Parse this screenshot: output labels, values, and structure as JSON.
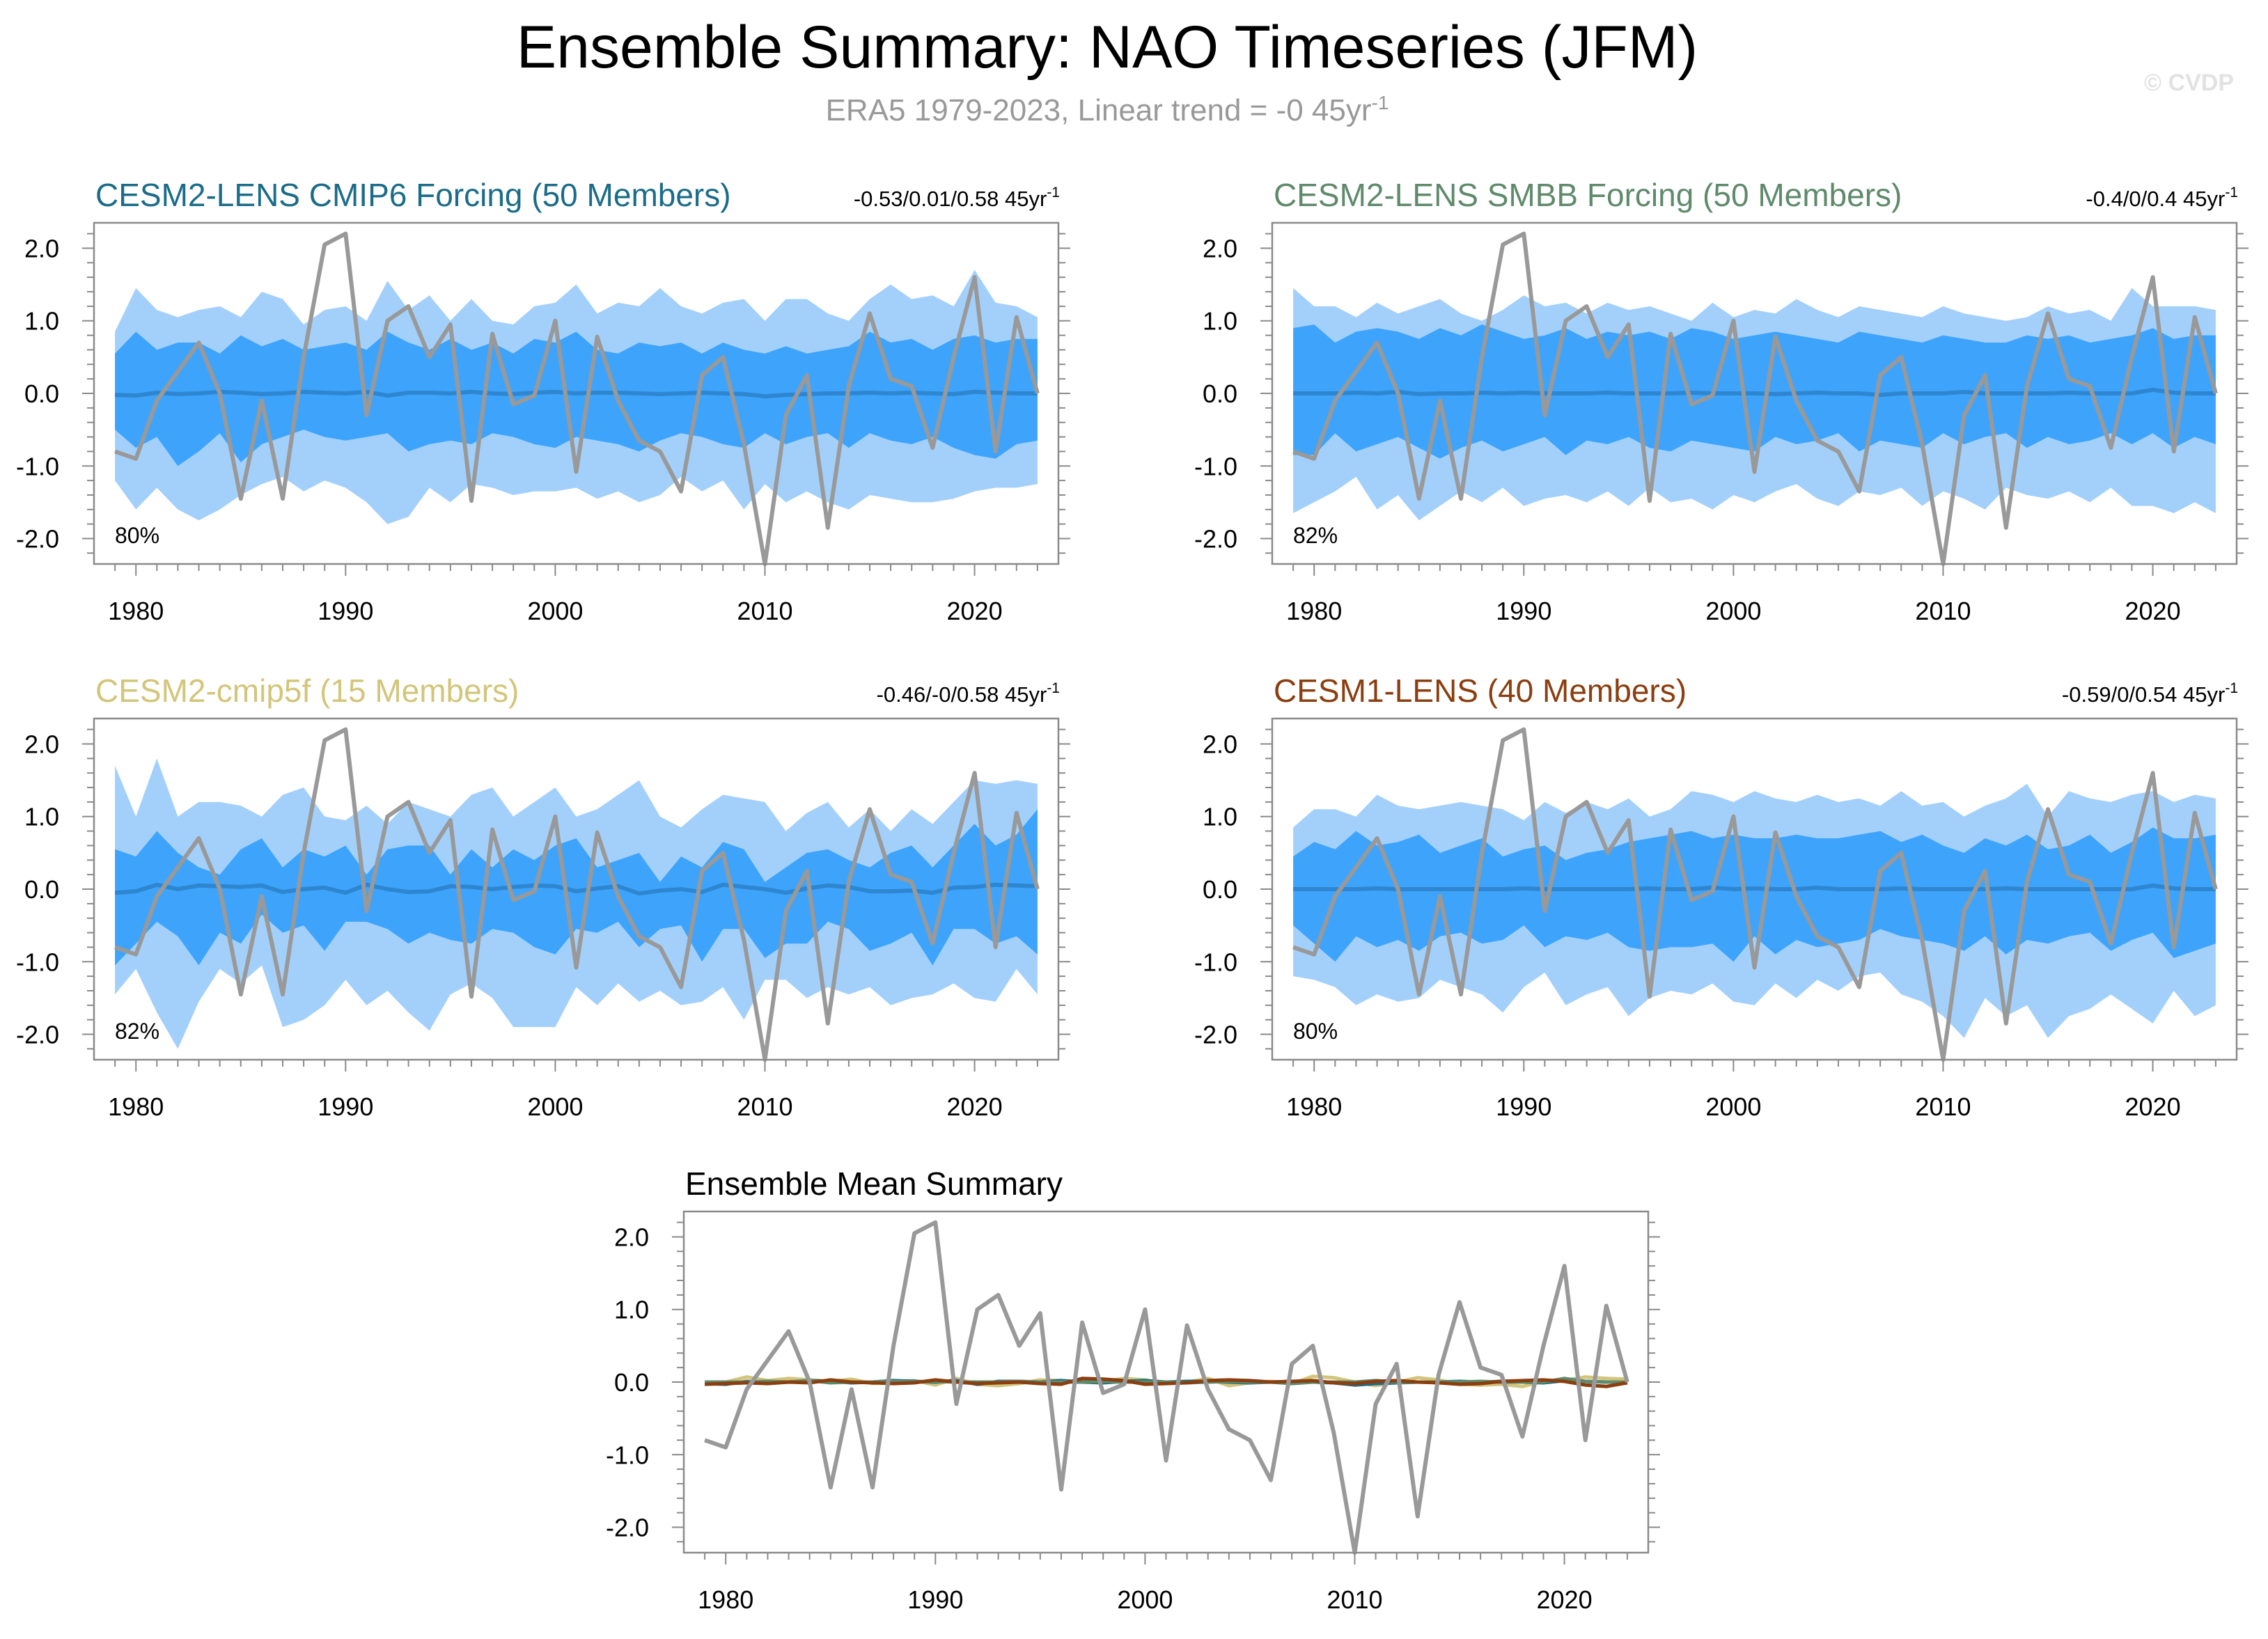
{
  "title": "Ensemble Summary: NAO Timeseries (JFM)",
  "subtitle": {
    "text": "ERA5 1979-2023, Linear trend = -0 45yr",
    "sup": "-1"
  },
  "watermark": "© CVDP",
  "colors": {
    "band_outer": "#a3d0fb",
    "band_inner": "#3ea4fb",
    "ens_mean": "#2e86d0",
    "obs": "#999999",
    "cesm2_cmip6": "#1b6c89",
    "cesm2_smbb": "#5f8a6c",
    "cesm2_cmip5f": "#d3c57a",
    "cesm1": "#8b3e0f"
  },
  "obs_years": [
    1979,
    1980,
    1981,
    1982,
    1983,
    1984,
    1985,
    1986,
    1987,
    1988,
    1989,
    1990,
    1991,
    1992,
    1993,
    1994,
    1995,
    1996,
    1997,
    1998,
    1999,
    2000,
    2001,
    2002,
    2003,
    2004,
    2005,
    2006,
    2007,
    2008,
    2009,
    2010,
    2011,
    2012,
    2013,
    2014,
    2015,
    2016,
    2017,
    2018,
    2019,
    2020,
    2021,
    2022,
    2023
  ],
  "obs_values": [
    -0.8,
    -0.9,
    -0.1,
    0.3,
    0.7,
    0.0,
    -1.45,
    -0.1,
    -1.45,
    0.5,
    2.05,
    2.2,
    -0.3,
    1.0,
    1.2,
    0.5,
    0.95,
    -1.48,
    0.82,
    -0.15,
    -0.03,
    1.0,
    -1.08,
    0.78,
    -0.1,
    -0.65,
    -0.8,
    -1.35,
    0.25,
    0.5,
    -0.7,
    -2.35,
    -0.3,
    0.25,
    -1.85,
    0.1,
    1.1,
    0.2,
    0.1,
    -0.75,
    0.5,
    1.6,
    -0.8,
    1.05,
    0.0
  ],
  "panels": [
    {
      "id": "cesm2-lens-cmip6",
      "title": "CESM2-LENS CMIP6 Forcing (50 Members)",
      "title_color": "#1b6c89",
      "stats": "-0.53/0.01/0.58 45yr",
      "stats_sup": "-1",
      "pct": "80%",
      "mean": [
        -0.02,
        -0.03,
        0.01,
        -0.01,
        0.0,
        0.02,
        0.01,
        -0.01,
        0.0,
        0.02,
        0.01,
        0.0,
        0.02,
        -0.03,
        0.01,
        0.01,
        0.0,
        0.02,
        0.0,
        -0.01,
        0.01,
        0.02,
        0.0,
        0.01,
        0.01,
        0.0,
        -0.01,
        0.0,
        0.01,
        0.0,
        -0.01,
        -0.04,
        -0.02,
        -0.01,
        0.0,
        0.0,
        0.01,
        0.0,
        0.01,
        0.0,
        -0.01,
        0.02,
        0.01,
        0.0,
        0.0
      ],
      "inner_upper": [
        0.55,
        0.85,
        0.6,
        0.7,
        0.7,
        0.55,
        0.8,
        0.65,
        0.75,
        0.6,
        0.65,
        0.7,
        0.6,
        0.85,
        0.7,
        0.6,
        0.75,
        0.6,
        0.7,
        0.55,
        0.75,
        0.7,
        0.85,
        0.6,
        0.55,
        0.7,
        0.65,
        0.7,
        0.55,
        0.7,
        0.6,
        0.55,
        0.65,
        0.55,
        0.6,
        0.65,
        0.85,
        0.7,
        0.75,
        0.6,
        0.75,
        0.8,
        0.7,
        0.75,
        0.75
      ],
      "inner_lower": [
        -0.5,
        -0.75,
        -0.6,
        -1.0,
        -0.8,
        -0.55,
        -0.95,
        -0.7,
        -0.6,
        -0.5,
        -0.6,
        -0.65,
        -0.6,
        -0.55,
        -0.8,
        -0.7,
        -0.65,
        -0.7,
        -0.55,
        -0.6,
        -0.7,
        -0.75,
        -0.6,
        -0.65,
        -0.7,
        -0.8,
        -0.65,
        -0.55,
        -0.6,
        -0.7,
        -0.75,
        -0.55,
        -0.7,
        -0.6,
        -0.55,
        -0.75,
        -0.55,
        -0.65,
        -0.7,
        -0.6,
        -0.75,
        -0.85,
        -0.9,
        -0.7,
        -0.65
      ],
      "outer_upper": [
        0.85,
        1.45,
        1.15,
        1.05,
        1.15,
        1.2,
        1.05,
        1.4,
        1.3,
        0.95,
        1.15,
        1.2,
        1.0,
        1.55,
        1.15,
        1.35,
        1.0,
        1.3,
        1.0,
        0.95,
        1.2,
        1.25,
        1.5,
        1.1,
        1.25,
        1.2,
        1.45,
        1.2,
        1.1,
        1.25,
        1.3,
        1.0,
        1.3,
        1.3,
        1.1,
        1.0,
        1.3,
        1.5,
        1.3,
        1.35,
        1.2,
        1.7,
        1.25,
        1.2,
        1.05
      ],
      "outer_lower": [
        -1.2,
        -1.6,
        -1.3,
        -1.6,
        -1.75,
        -1.6,
        -1.4,
        -1.25,
        -1.15,
        -1.35,
        -1.2,
        -1.3,
        -1.5,
        -1.8,
        -1.7,
        -1.3,
        -1.5,
        -1.25,
        -1.3,
        -1.4,
        -1.35,
        -1.35,
        -1.3,
        -1.45,
        -1.35,
        -1.5,
        -1.4,
        -1.15,
        -1.35,
        -1.2,
        -1.6,
        -1.25,
        -1.5,
        -1.35,
        -1.5,
        -1.6,
        -1.4,
        -1.45,
        -1.5,
        -1.5,
        -1.45,
        -1.35,
        -1.3,
        -1.3,
        -1.25
      ]
    },
    {
      "id": "cesm2-lens-smbb",
      "title": "CESM2-LENS SMBB Forcing (50 Members)",
      "title_color": "#5f8a6c",
      "stats": "-0.4/0/0.4 45yr",
      "stats_sup": "-1",
      "pct": "82%",
      "mean": [
        0.0,
        0.0,
        0.0,
        0.01,
        0.0,
        0.02,
        -0.01,
        0.0,
        0.0,
        0.01,
        0.0,
        0.01,
        0.0,
        0.0,
        0.0,
        0.01,
        0.0,
        0.0,
        0.0,
        0.01,
        0.0,
        0.0,
        0.0,
        -0.01,
        0.0,
        0.01,
        0.0,
        0.0,
        -0.02,
        0.0,
        0.0,
        0.0,
        0.02,
        0.0,
        0.0,
        0.0,
        0.0,
        0.01,
        0.0,
        0.0,
        0.0,
        0.05,
        0.01,
        0.0,
        0.0
      ],
      "inner_upper": [
        0.9,
        0.95,
        0.7,
        0.85,
        0.9,
        0.85,
        0.75,
        0.9,
        0.8,
        0.95,
        0.85,
        0.75,
        0.8,
        0.9,
        0.75,
        0.85,
        0.8,
        0.85,
        0.75,
        0.9,
        0.85,
        0.75,
        0.8,
        0.85,
        0.8,
        0.75,
        0.7,
        0.85,
        0.8,
        0.75,
        0.7,
        0.8,
        0.75,
        0.7,
        0.7,
        0.8,
        0.75,
        0.8,
        0.7,
        0.75,
        0.8,
        0.9,
        0.75,
        0.8,
        0.8
      ],
      "inner_lower": [
        -0.85,
        -0.85,
        -0.55,
        -0.8,
        -0.7,
        -0.6,
        -0.75,
        -0.9,
        -0.75,
        -0.65,
        -0.8,
        -0.7,
        -0.6,
        -0.85,
        -0.65,
        -0.7,
        -0.6,
        -0.75,
        -0.8,
        -0.65,
        -0.7,
        -0.75,
        -0.8,
        -0.6,
        -0.7,
        -0.65,
        -0.55,
        -0.8,
        -0.65,
        -0.7,
        -0.75,
        -0.55,
        -0.7,
        -0.6,
        -0.55,
        -0.75,
        -0.6,
        -0.7,
        -0.65,
        -0.55,
        -0.7,
        -0.55,
        -0.75,
        -0.6,
        -0.7
      ],
      "outer_upper": [
        1.45,
        1.2,
        1.2,
        1.05,
        1.25,
        1.1,
        1.2,
        1.3,
        1.1,
        1.0,
        1.15,
        1.35,
        1.2,
        1.25,
        1.1,
        1.25,
        1.15,
        1.2,
        1.1,
        1.0,
        1.25,
        1.05,
        1.15,
        1.1,
        1.3,
        1.15,
        1.05,
        1.2,
        1.15,
        1.1,
        1.05,
        1.2,
        1.1,
        1.05,
        1.0,
        1.05,
        1.2,
        1.1,
        1.15,
        1.0,
        1.45,
        1.2,
        1.2,
        1.2,
        1.15
      ],
      "outer_lower": [
        -1.65,
        -1.5,
        -1.35,
        -1.15,
        -1.6,
        -1.4,
        -1.75,
        -1.55,
        -1.35,
        -1.5,
        -1.3,
        -1.55,
        -1.45,
        -1.4,
        -1.5,
        -1.35,
        -1.55,
        -1.3,
        -1.5,
        -1.45,
        -1.6,
        -1.4,
        -1.5,
        -1.35,
        -1.25,
        -1.45,
        -1.55,
        -1.35,
        -1.4,
        -1.3,
        -1.55,
        -1.35,
        -1.45,
        -1.6,
        -1.3,
        -1.4,
        -1.45,
        -1.35,
        -1.5,
        -1.3,
        -1.55,
        -1.55,
        -1.65,
        -1.5,
        -1.65
      ]
    },
    {
      "id": "cesm2-cmip5f",
      "title": "CESM2-cmip5f (15 Members)",
      "title_color": "#d3c57a",
      "stats": "-0.46/-0/0.58 45yr",
      "stats_sup": "-1",
      "pct": "82%",
      "mean": [
        -0.05,
        -0.03,
        0.06,
        0.0,
        0.05,
        0.04,
        0.03,
        0.05,
        -0.04,
        0.0,
        0.02,
        -0.05,
        0.06,
        0.0,
        -0.04,
        -0.03,
        0.04,
        0.03,
        0.0,
        0.03,
        0.05,
        0.04,
        -0.03,
        0.01,
        0.04,
        -0.06,
        -0.02,
        0.0,
        -0.04,
        0.06,
        0.03,
        0.0,
        -0.05,
        0.01,
        0.05,
        0.03,
        -0.03,
        -0.03,
        -0.02,
        -0.05,
        0.02,
        0.03,
        0.06,
        0.05,
        0.04
      ],
      "inner_upper": [
        0.55,
        0.45,
        0.8,
        0.5,
        0.3,
        0.2,
        0.55,
        0.7,
        0.3,
        0.55,
        0.45,
        0.6,
        0.2,
        0.55,
        0.6,
        0.6,
        0.2,
        0.55,
        0.3,
        0.55,
        0.4,
        0.6,
        0.7,
        0.3,
        0.4,
        0.5,
        0.1,
        0.45,
        0.3,
        0.65,
        0.55,
        0.1,
        0.3,
        0.5,
        0.55,
        0.4,
        0.3,
        0.5,
        0.6,
        0.3,
        0.6,
        0.9,
        0.6,
        0.75,
        1.1
      ],
      "inner_lower": [
        -1.05,
        -0.75,
        -0.45,
        -0.65,
        -1.05,
        -0.6,
        -0.75,
        -0.35,
        -0.6,
        -0.5,
        -0.85,
        -0.45,
        -0.45,
        -0.55,
        -0.75,
        -0.6,
        -0.7,
        -0.75,
        -0.55,
        -0.6,
        -0.8,
        -0.9,
        -0.55,
        -0.6,
        -0.45,
        -0.8,
        -0.55,
        -0.5,
        -1.0,
        -0.55,
        -0.55,
        -0.95,
        -0.75,
        -0.75,
        -0.45,
        -0.55,
        -0.85,
        -0.75,
        -0.6,
        -1.05,
        -0.55,
        -0.55,
        -0.75,
        -0.65,
        -0.9
      ],
      "outer_upper": [
        1.7,
        1.0,
        1.8,
        1.0,
        1.2,
        1.2,
        1.15,
        1.0,
        1.3,
        1.4,
        1.0,
        0.95,
        1.15,
        0.9,
        1.2,
        1.1,
        1.0,
        1.3,
        1.4,
        1.0,
        1.2,
        1.4,
        1.0,
        1.1,
        1.3,
        1.5,
        1.0,
        0.85,
        1.1,
        1.3,
        1.25,
        1.2,
        0.8,
        1.05,
        1.2,
        0.85,
        1.1,
        0.8,
        1.1,
        0.9,
        1.2,
        1.5,
        1.45,
        1.5,
        1.45
      ],
      "outer_lower": [
        -1.45,
        -1.1,
        -1.7,
        -2.2,
        -1.55,
        -1.1,
        -1.3,
        -1.05,
        -1.9,
        -1.8,
        -1.6,
        -1.25,
        -1.6,
        -1.4,
        -1.7,
        -1.95,
        -1.45,
        -1.3,
        -1.5,
        -1.9,
        -1.9,
        -1.9,
        -1.35,
        -1.6,
        -1.3,
        -1.55,
        -1.4,
        -1.6,
        -1.55,
        -1.35,
        -1.8,
        -1.25,
        -1.25,
        -1.5,
        -1.35,
        -1.45,
        -1.35,
        -1.6,
        -1.5,
        -1.45,
        -1.3,
        -1.5,
        -1.55,
        -1.1,
        -1.45
      ]
    },
    {
      "id": "cesm1-lens",
      "title": "CESM1-LENS (40 Members)",
      "title_color": "#8b3e0f",
      "stats": "-0.59/0/0.54 45yr",
      "stats_sup": "-1",
      "pct": "80%",
      "mean": [
        0.0,
        0.0,
        0.0,
        0.0,
        0.01,
        0.0,
        0.0,
        0.0,
        0.0,
        0.0,
        0.0,
        0.01,
        0.0,
        0.0,
        0.0,
        0.0,
        0.0,
        0.01,
        0.0,
        0.0,
        0.02,
        0.0,
        0.01,
        0.0,
        0.0,
        0.02,
        0.0,
        0.0,
        0.0,
        0.01,
        0.0,
        0.0,
        0.0,
        0.0,
        0.01,
        0.0,
        0.0,
        0.0,
        0.0,
        0.0,
        0.0,
        0.05,
        0.01,
        0.0,
        0.0
      ],
      "inner_upper": [
        0.45,
        0.65,
        0.55,
        0.8,
        0.6,
        0.65,
        0.75,
        0.5,
        0.6,
        0.7,
        0.45,
        0.55,
        0.6,
        0.4,
        0.5,
        0.55,
        0.65,
        0.7,
        0.75,
        0.8,
        0.7,
        0.75,
        0.7,
        0.7,
        0.75,
        0.7,
        0.7,
        0.75,
        0.8,
        0.65,
        0.75,
        0.6,
        0.5,
        0.7,
        0.6,
        0.75,
        0.55,
        0.6,
        0.75,
        0.5,
        0.65,
        0.85,
        0.7,
        0.7,
        0.75
      ],
      "inner_lower": [
        -0.5,
        -0.75,
        -1.0,
        -0.65,
        -0.8,
        -0.7,
        -0.85,
        -0.65,
        -0.6,
        -0.75,
        -0.7,
        -0.5,
        -0.8,
        -0.65,
        -0.7,
        -0.6,
        -0.8,
        -0.85,
        -0.8,
        -0.8,
        -0.75,
        -1.0,
        -0.65,
        -0.9,
        -0.7,
        -0.8,
        -0.75,
        -0.7,
        -0.55,
        -0.65,
        -0.7,
        -0.75,
        -0.85,
        -0.65,
        -0.9,
        -0.7,
        -0.75,
        -0.65,
        -0.6,
        -0.85,
        -0.7,
        -0.6,
        -0.95,
        -0.85,
        -0.75
      ],
      "outer_upper": [
        0.85,
        1.1,
        1.1,
        1.0,
        1.3,
        1.15,
        1.1,
        1.15,
        1.2,
        1.15,
        1.1,
        0.95,
        1.2,
        1.05,
        1.2,
        1.1,
        1.25,
        1.0,
        1.1,
        1.35,
        1.3,
        1.2,
        1.35,
        1.25,
        1.2,
        1.3,
        1.2,
        1.25,
        1.15,
        1.35,
        1.15,
        1.2,
        1.0,
        1.15,
        1.25,
        1.45,
        1.0,
        1.35,
        1.25,
        1.2,
        1.3,
        1.35,
        1.2,
        1.3,
        1.25
      ],
      "outer_lower": [
        -1.2,
        -1.25,
        -1.35,
        -1.6,
        -1.45,
        -1.55,
        -1.5,
        -1.25,
        -1.35,
        -1.45,
        -1.7,
        -1.35,
        -1.15,
        -1.6,
        -1.45,
        -1.35,
        -1.75,
        -1.5,
        -1.4,
        -1.45,
        -1.3,
        -1.55,
        -1.6,
        -1.3,
        -1.5,
        -1.25,
        -1.4,
        -1.2,
        -1.15,
        -1.45,
        -1.55,
        -1.75,
        -2.05,
        -1.5,
        -1.75,
        -1.6,
        -2.05,
        -1.75,
        -1.65,
        -1.45,
        -1.65,
        -1.85,
        -1.4,
        -1.75,
        -1.6
      ]
    }
  ],
  "bottom_panel": {
    "title": "Ensemble Mean Summary",
    "series": [
      {
        "color": "#d3c57a",
        "values": [
          -0.02,
          0.0,
          0.07,
          0.02,
          0.05,
          0.03,
          0.01,
          0.04,
          -0.02,
          0.01,
          0.02,
          -0.04,
          0.05,
          -0.03,
          -0.05,
          -0.02,
          0.03,
          0.02,
          0.0,
          0.01,
          0.05,
          0.03,
          -0.02,
          0.0,
          0.05,
          -0.05,
          -0.01,
          0.01,
          -0.02,
          0.08,
          0.06,
          0.0,
          -0.05,
          0.0,
          0.06,
          0.03,
          -0.03,
          -0.04,
          -0.03,
          -0.06,
          0.01,
          0.02,
          0.07,
          0.05,
          0.04
        ]
      },
      {
        "color": "#1b6c89",
        "values": [
          -0.02,
          -0.03,
          0.01,
          -0.01,
          0.0,
          0.02,
          0.01,
          -0.01,
          0.0,
          0.02,
          0.01,
          0.0,
          0.02,
          -0.03,
          0.01,
          0.01,
          0.0,
          0.02,
          0.0,
          -0.01,
          0.01,
          0.02,
          0.0,
          0.01,
          0.01,
          0.0,
          -0.01,
          0.0,
          0.01,
          0.0,
          -0.01,
          -0.04,
          -0.02,
          -0.01,
          0.0,
          0.0,
          0.01,
          0.0,
          0.01,
          0.0,
          -0.01,
          0.02,
          0.01,
          0.0,
          0.0
        ]
      },
      {
        "color": "#5f8a6c",
        "values": [
          0.0,
          0.0,
          0.0,
          0.01,
          0.0,
          0.02,
          -0.01,
          0.0,
          0.0,
          0.01,
          0.0,
          0.01,
          0.0,
          0.0,
          0.0,
          0.01,
          0.0,
          0.0,
          0.0,
          0.01,
          0.0,
          0.0,
          0.0,
          -0.01,
          0.0,
          0.01,
          0.0,
          0.0,
          -0.02,
          0.0,
          0.0,
          0.0,
          0.02,
          0.0,
          0.0,
          0.0,
          0.0,
          0.01,
          0.0,
          0.0,
          0.0,
          0.05,
          0.01,
          0.0,
          0.0
        ]
      },
      {
        "color": "#8b3e0f",
        "values": [
          -0.03,
          -0.02,
          -0.01,
          -0.02,
          0.0,
          -0.01,
          0.03,
          0.0,
          -0.01,
          -0.02,
          -0.01,
          0.03,
          0.0,
          -0.02,
          -0.01,
          0.0,
          -0.02,
          -0.03,
          0.05,
          0.04,
          0.02,
          -0.03,
          -0.02,
          -0.01,
          0.02,
          0.03,
          0.02,
          0.0,
          0.01,
          0.02,
          -0.01,
          -0.02,
          0.01,
          0.02,
          0.0,
          -0.01,
          -0.03,
          -0.02,
          0.01,
          0.02,
          0.03,
          0.01,
          -0.04,
          -0.06,
          -0.01
        ]
      }
    ]
  },
  "chart_data": [
    {
      "type": "area",
      "ylim": [
        -2.35,
        2.35
      ],
      "xlim": [
        1978,
        2024
      ],
      "y_ticks": [
        "2.0",
        "1.0",
        "0.0",
        "-1.0",
        "-2.0"
      ],
      "x_ticks": [
        "1980",
        "1990",
        "2000",
        "2010",
        "2020"
      ]
    }
  ]
}
